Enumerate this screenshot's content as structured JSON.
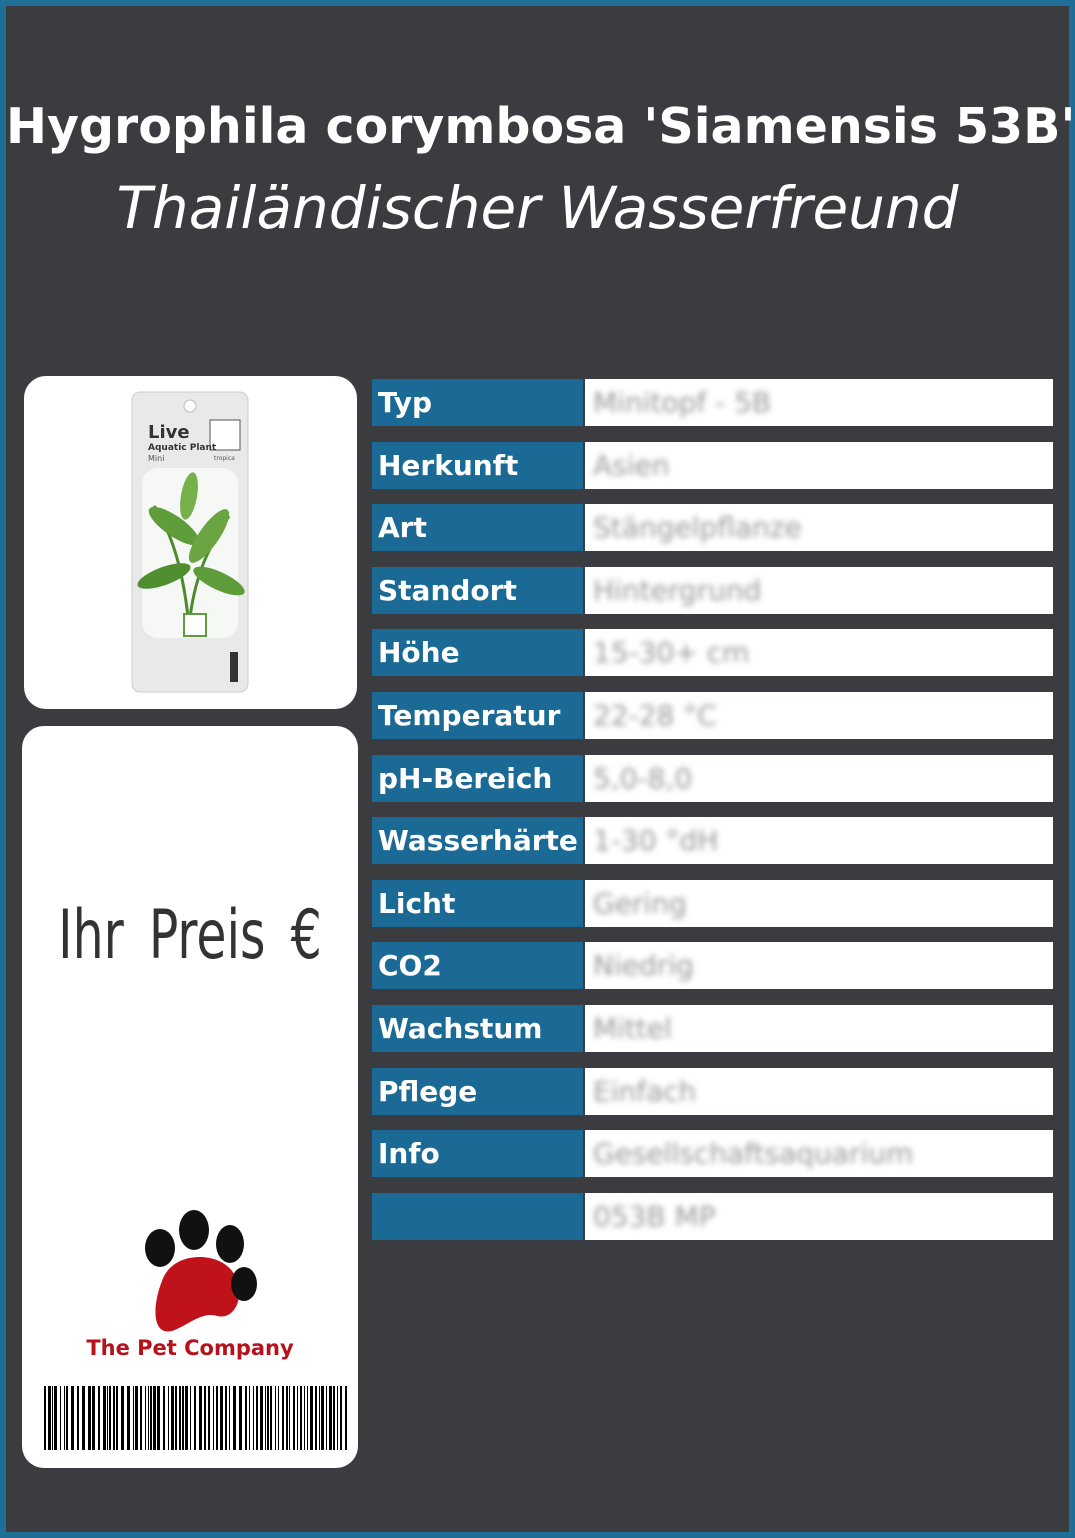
{
  "header": {
    "title": "Hygrophila corymbosa 'Siamensis 53B'",
    "subtitle": "Thailändischer Wasserfreund"
  },
  "package": {
    "brand": "Live",
    "line": "Aquatic Plant",
    "size": "Mini",
    "maker": "tropica"
  },
  "price": {
    "label": "Ihr Preis €"
  },
  "company": {
    "name": "The Pet Company"
  },
  "table": {
    "rows": [
      {
        "label": "Typ",
        "value": "Minitopf - 5B"
      },
      {
        "label": "Herkunft",
        "value": "Asien"
      },
      {
        "label": "Art",
        "value": "Stängelpflanze"
      },
      {
        "label": "Standort",
        "value": "Hintergrund"
      },
      {
        "label": "Höhe",
        "value": "15-30+ cm"
      },
      {
        "label": "Temperatur",
        "value": "22-28 °C"
      },
      {
        "label": "pH-Bereich",
        "value": "5,0-8,0"
      },
      {
        "label": "Wasserhärte",
        "value": "1-30 °dH"
      },
      {
        "label": "Licht",
        "value": "Gering"
      },
      {
        "label": "CO2",
        "value": "Niedrig"
      },
      {
        "label": "Wachstum",
        "value": "Mittel"
      },
      {
        "label": "Pflege",
        "value": "Einfach"
      },
      {
        "label": "Info",
        "value": "Gesellschaftsaquarium"
      },
      {
        "value": "053B MP"
      }
    ]
  }
}
